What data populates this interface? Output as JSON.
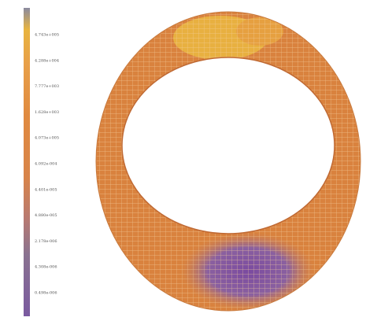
{
  "legend": {
    "labels": [
      "4.743e+005",
      "4.288e+004",
      "7.777e+003",
      "1.628e+003",
      "4.073e+005",
      "4.092e-004",
      "4.401e-005",
      "4.880e-005",
      "2.178e-006",
      "4.308e-006",
      "0.498e-006"
    ]
  }
}
